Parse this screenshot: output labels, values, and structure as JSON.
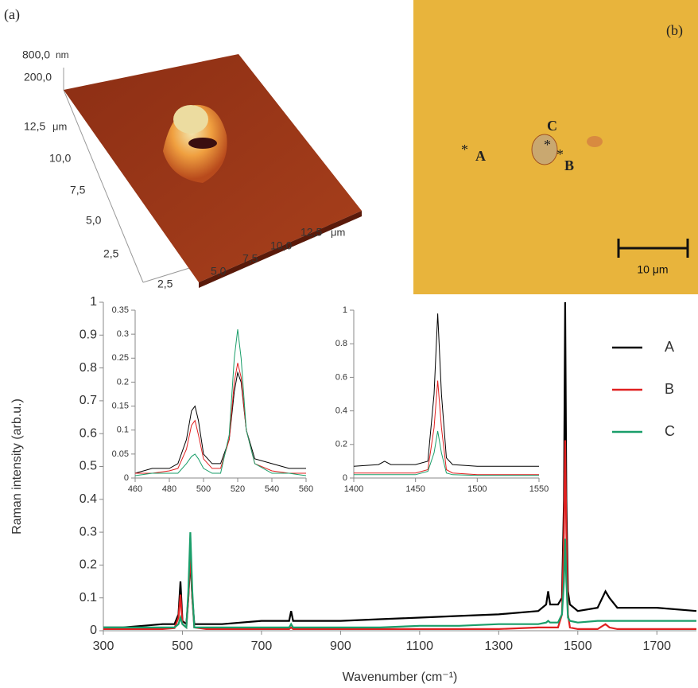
{
  "panel_a": {
    "label": "(a)",
    "z_top": "800,0",
    "z_unit": "nm",
    "z_low": "200,0",
    "y_ticks": [
      "12,5",
      "10,0",
      "7,5",
      "5,0",
      "2,5"
    ],
    "y_unit": "μm",
    "x_ticks": [
      "2,5",
      "5,0",
      "7,5",
      "10,0",
      "12,5"
    ],
    "x_unit": "μm"
  },
  "panel_b": {
    "label": "(b)",
    "marker": "*",
    "points": [
      "A",
      "B",
      "C"
    ],
    "scale_bar": "10 μm"
  },
  "chart_data": [
    {
      "type": "line",
      "x_label": "Wavenumber (cm⁻¹)",
      "y_label": "Raman intensity (arb.u.)",
      "xlim": [
        300,
        1800
      ],
      "xticks": [
        300,
        500,
        700,
        900,
        1100,
        1300,
        1500,
        1700
      ],
      "ylim": [
        0,
        1
      ],
      "yticks": [
        0,
        0.1,
        0.2,
        0.3,
        0.4,
        0.5,
        0.6,
        0.7,
        0.8,
        0.9,
        1
      ],
      "legend": "upper right",
      "x": [
        300,
        350,
        400,
        450,
        480,
        490,
        495,
        500,
        510,
        515,
        520,
        525,
        530,
        560,
        600,
        700,
        770,
        775,
        780,
        850,
        900,
        1000,
        1100,
        1200,
        1300,
        1400,
        1420,
        1425,
        1430,
        1450,
        1460,
        1465,
        1468,
        1471,
        1475,
        1480,
        1500,
        1550,
        1570,
        1580,
        1600,
        1700,
        1800
      ],
      "series": [
        {
          "name": "A",
          "color": "#000000",
          "values": [
            0.01,
            0.01,
            0.015,
            0.02,
            0.02,
            0.05,
            0.15,
            0.03,
            0.02,
            0.1,
            0.22,
            0.1,
            0.02,
            0.02,
            0.02,
            0.03,
            0.03,
            0.06,
            0.03,
            0.03,
            0.03,
            0.035,
            0.04,
            0.045,
            0.05,
            0.06,
            0.08,
            0.12,
            0.08,
            0.08,
            0.1,
            0.4,
            1.0,
            0.4,
            0.12,
            0.08,
            0.06,
            0.07,
            0.12,
            0.1,
            0.07,
            0.07,
            0.06
          ]
        },
        {
          "name": "B",
          "color": "#e02020",
          "values": [
            0.005,
            0.005,
            0.005,
            0.005,
            0.008,
            0.04,
            0.11,
            0.02,
            0.01,
            0.1,
            0.24,
            0.1,
            0.01,
            0.005,
            0.005,
            0.005,
            0.005,
            0.01,
            0.005,
            0.005,
            0.005,
            0.005,
            0.005,
            0.005,
            0.005,
            0.01,
            0.01,
            0.01,
            0.01,
            0.01,
            0.05,
            0.3,
            0.58,
            0.3,
            0.05,
            0.01,
            0.005,
            0.005,
            0.02,
            0.01,
            0.005,
            0.005,
            0.005
          ]
        },
        {
          "name": "C",
          "color": "#1a9e6a",
          "values": [
            0.01,
            0.01,
            0.01,
            0.01,
            0.01,
            0.02,
            0.04,
            0.02,
            0.01,
            0.12,
            0.3,
            0.12,
            0.01,
            0.01,
            0.01,
            0.01,
            0.01,
            0.02,
            0.01,
            0.01,
            0.01,
            0.01,
            0.015,
            0.015,
            0.02,
            0.02,
            0.025,
            0.03,
            0.025,
            0.025,
            0.05,
            0.15,
            0.28,
            0.15,
            0.04,
            0.03,
            0.025,
            0.03,
            0.03,
            0.03,
            0.03,
            0.03,
            0.03
          ]
        }
      ]
    },
    {
      "type": "line",
      "xlim": [
        460,
        560
      ],
      "xticks": [
        460,
        480,
        500,
        520,
        540,
        560
      ],
      "ylim": [
        0,
        0.35
      ],
      "yticks": [
        0,
        0.05,
        0.1,
        0.15,
        0.2,
        0.25,
        0.3,
        0.35
      ],
      "x": [
        460,
        470,
        480,
        485,
        490,
        493,
        495,
        497,
        500,
        505,
        510,
        515,
        518,
        520,
        522,
        525,
        530,
        540,
        550,
        560
      ],
      "series": [
        {
          "name": "A",
          "color": "#000000",
          "values": [
            0.01,
            0.02,
            0.02,
            0.03,
            0.08,
            0.14,
            0.15,
            0.12,
            0.05,
            0.03,
            0.03,
            0.08,
            0.18,
            0.22,
            0.2,
            0.1,
            0.04,
            0.03,
            0.02,
            0.02
          ]
        },
        {
          "name": "B",
          "color": "#e02020",
          "values": [
            0.01,
            0.01,
            0.015,
            0.02,
            0.06,
            0.11,
            0.12,
            0.09,
            0.04,
            0.02,
            0.02,
            0.08,
            0.2,
            0.24,
            0.21,
            0.1,
            0.03,
            0.015,
            0.01,
            0.01
          ]
        },
        {
          "name": "C",
          "color": "#1a9e6a",
          "values": [
            0.005,
            0.01,
            0.01,
            0.01,
            0.03,
            0.045,
            0.05,
            0.04,
            0.02,
            0.01,
            0.01,
            0.09,
            0.25,
            0.31,
            0.25,
            0.1,
            0.03,
            0.01,
            0.01,
            0.005
          ]
        }
      ]
    },
    {
      "type": "line",
      "xlim": [
        1400,
        1550
      ],
      "xticks": [
        1400,
        1450,
        1500,
        1550
      ],
      "ylim": [
        0,
        1
      ],
      "yticks": [
        0,
        0.2,
        0.4,
        0.6,
        0.8,
        1
      ],
      "x": [
        1400,
        1420,
        1425,
        1430,
        1450,
        1460,
        1465,
        1468,
        1471,
        1475,
        1480,
        1500,
        1550
      ],
      "series": [
        {
          "name": "A",
          "color": "#000000",
          "values": [
            0.07,
            0.08,
            0.1,
            0.08,
            0.08,
            0.1,
            0.5,
            0.98,
            0.5,
            0.12,
            0.08,
            0.07,
            0.07
          ]
        },
        {
          "name": "B",
          "color": "#e02020",
          "values": [
            0.03,
            0.03,
            0.03,
            0.03,
            0.03,
            0.05,
            0.3,
            0.58,
            0.3,
            0.05,
            0.03,
            0.02,
            0.02
          ]
        },
        {
          "name": "C",
          "color": "#1a9e6a",
          "values": [
            0.02,
            0.02,
            0.02,
            0.02,
            0.02,
            0.04,
            0.15,
            0.28,
            0.15,
            0.03,
            0.02,
            0.015,
            0.015
          ]
        }
      ]
    }
  ]
}
